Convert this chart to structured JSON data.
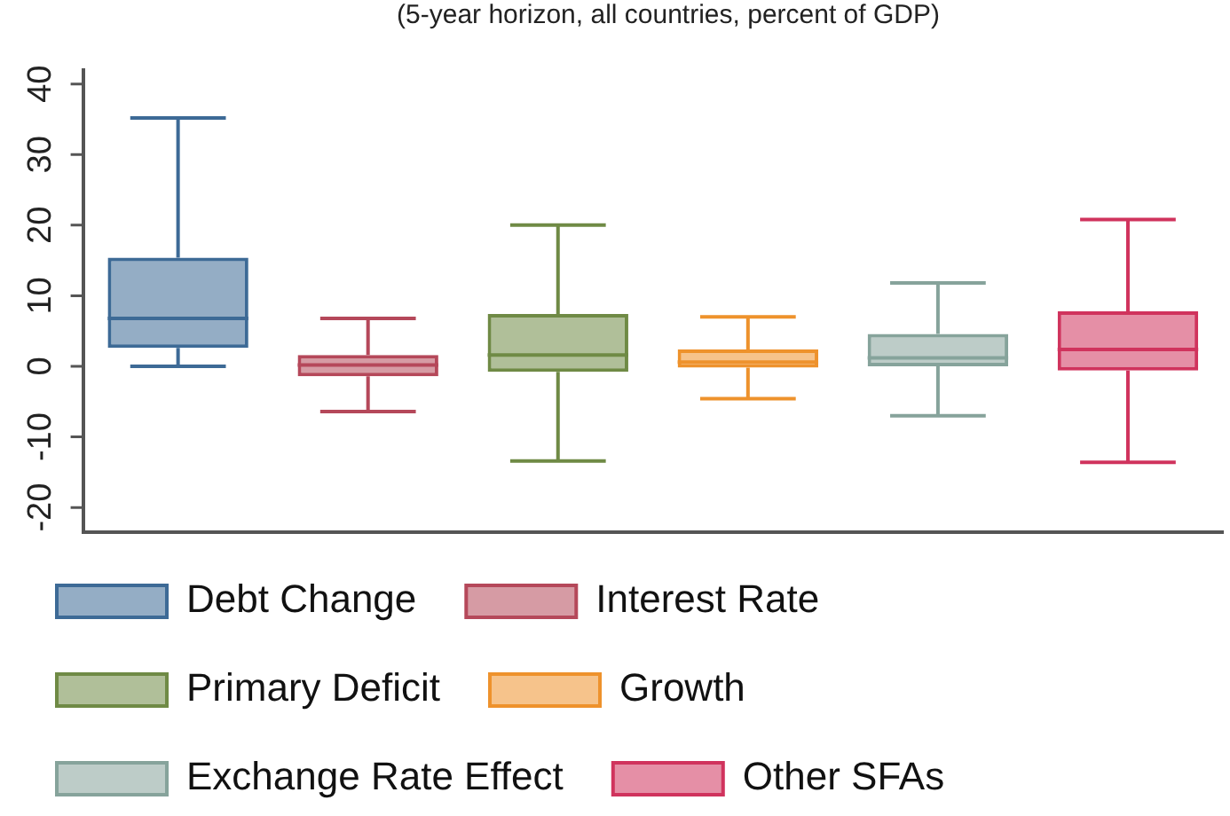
{
  "chart_data": {
    "type": "box",
    "subtitle": "(5-year horizon, all countries, percent of GDP)",
    "categories": [
      null,
      null,
      null,
      null,
      null,
      null
    ],
    "ylim": [
      -23.5,
      42
    ],
    "yticks": [
      -20,
      -10,
      0,
      10,
      20,
      30,
      40
    ],
    "grid": false,
    "legend": "bottom",
    "tick_labels": "y",
    "series": [
      {
        "name": "Debt Change",
        "color": "#3d6a96",
        "boxes": [
          {
            "low": 0,
            "q1": 2.6,
            "median": 6.8,
            "q3": 15.4,
            "high": 35.2
          },
          null,
          null,
          null,
          null,
          null
        ]
      },
      {
        "name": "Interest Rate",
        "color": "#b5485a",
        "boxes": [
          null,
          {
            "low": -6.4,
            "q1": -1.4,
            "median": 0.2,
            "q3": 1.6,
            "high": 6.8
          },
          null,
          null,
          null,
          null
        ]
      },
      {
        "name": "Primary Deficit",
        "color": "#6f8a45",
        "boxes": [
          null,
          null,
          {
            "low": -13.4,
            "q1": -0.8,
            "median": 1.6,
            "q3": 7.4,
            "high": 20
          },
          null,
          null,
          null
        ]
      },
      {
        "name": "Growth",
        "color": "#ee922c",
        "boxes": [
          null,
          null,
          null,
          {
            "low": -4.6,
            "q1": -0.2,
            "median": 0.6,
            "q3": 2.4,
            "high": 7
          },
          null,
          null
        ]
      },
      {
        "name": "Exchange Rate Effect",
        "color": "#86a39b",
        "boxes": [
          null,
          null,
          null,
          null,
          {
            "low": -7,
            "q1": 0,
            "median": 1.2,
            "q3": 4.6,
            "high": 11.8
          },
          null
        ]
      },
      {
        "name": "Other SFAs",
        "color": "#d0335d",
        "boxes": [
          null,
          null,
          null,
          null,
          null,
          {
            "low": -13.6,
            "q1": -0.6,
            "median": 2.4,
            "q3": 7.8,
            "high": 20.8
          }
        ]
      }
    ]
  }
}
